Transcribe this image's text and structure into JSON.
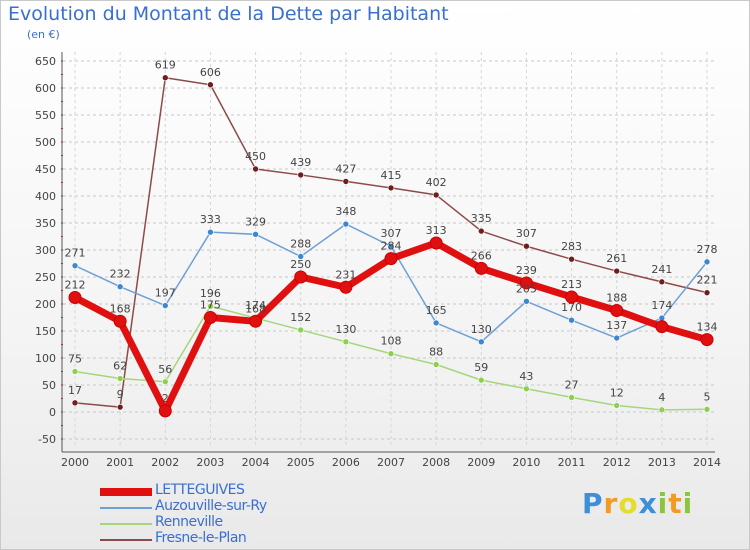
{
  "title": "Evolution du Montant de la Dette par Habitant",
  "subtitle": "(en €)",
  "logo": "Proxiti",
  "chart_data": {
    "type": "line",
    "x": [
      "2000",
      "2001",
      "2002",
      "2003",
      "2004",
      "2005",
      "2006",
      "2007",
      "2008",
      "2009",
      "2010",
      "2011",
      "2012",
      "2013",
      "2014"
    ],
    "ylim": [
      -50,
      650
    ],
    "yticks": [
      650,
      600,
      550,
      500,
      450,
      400,
      350,
      300,
      250,
      200,
      150,
      100,
      50,
      0,
      -50
    ],
    "grid": "horizontal dashed",
    "legend_position": "bottom-left",
    "series": [
      {
        "name": "LETTEGUIVES",
        "color": "#e01010",
        "width": 7,
        "marker": "#e01010",
        "values": [
          212,
          168,
          2,
          175,
          168,
          250,
          231,
          284,
          313,
          266,
          239,
          213,
          188,
          158,
          134
        ],
        "labels": [
          "212",
          "168",
          "2",
          "175",
          "168",
          "250",
          "231",
          "284",
          "313",
          "266",
          "239",
          "213",
          "188",
          "",
          "134"
        ]
      },
      {
        "name": "Auzouville-sur-Ry",
        "color": "#6fa0d4",
        "width": 1.5,
        "marker": "#3f86d0",
        "values": [
          271,
          232,
          197,
          333,
          329,
          288,
          348,
          307,
          165,
          130,
          205,
          170,
          137,
          174,
          278
        ],
        "labels": [
          "271",
          "232",
          "197",
          "333",
          "329",
          "288",
          "348",
          "307",
          "165",
          "130",
          "205",
          "170",
          "137",
          "174",
          "278"
        ]
      },
      {
        "name": "Renneville",
        "color": "#a6d67b",
        "width": 1.5,
        "marker": "#8dcf4f",
        "values": [
          75,
          62,
          56,
          196,
          174,
          152,
          130,
          108,
          88,
          59,
          43,
          27,
          12,
          4,
          5
        ],
        "labels": [
          "75",
          "62",
          "56",
          "196",
          "174",
          "152",
          "130",
          "108",
          "88",
          "59",
          "43",
          "27",
          "12",
          "4",
          "5"
        ]
      },
      {
        "name": "Fresne-le-Plan",
        "color": "#8e4a4a",
        "width": 1.5,
        "marker": "#6e1e1e",
        "values": [
          17,
          9,
          619,
          606,
          450,
          439,
          427,
          415,
          402,
          335,
          307,
          283,
          261,
          241,
          221
        ],
        "labels": [
          "17",
          "9",
          "619",
          "606",
          "450",
          "439",
          "427",
          "415",
          "402",
          "335",
          "307",
          "283",
          "261",
          "241",
          "221"
        ]
      }
    ]
  }
}
